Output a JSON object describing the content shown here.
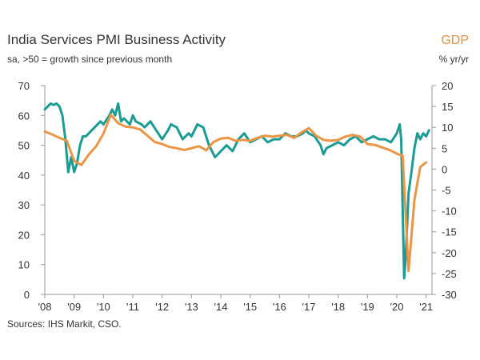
{
  "header": {
    "title": "India Services PMI Business Activity",
    "subtitle": "sa, >50 = growth since previous month",
    "right_series_label": "GDP",
    "right_axis_unit": "% yr/yr"
  },
  "footer": {
    "source": "Sources: IHS Markit, CSO."
  },
  "colors": {
    "pmi": "#1a9c95",
    "gdp": "#ec9545",
    "axis": "#9a9a9a",
    "text": "#333333"
  },
  "chart_data": {
    "type": "line",
    "title": "India Services PMI Business Activity",
    "subtitle": "sa, >50 = growth since previous month",
    "xlabel": "",
    "ylabel": "",
    "y2label": "% yr/yr",
    "xlim": [
      2008.0,
      2021.2
    ],
    "ylim": [
      0,
      70
    ],
    "y2lim": [
      -30,
      20
    ],
    "grid": false,
    "x_tick_labels": [
      "'08",
      "'09",
      "'10",
      "'11",
      "'12",
      "'13",
      "'14",
      "'15",
      "'16",
      "'17",
      "'18",
      "'19",
      "'20",
      "'21"
    ],
    "y_tick_labels": [
      "0",
      "10",
      "20",
      "30",
      "40",
      "50",
      "60",
      "70"
    ],
    "y2_tick_labels": [
      "-30",
      "-25",
      "-20",
      "-15",
      "-10",
      "-5",
      "0",
      "5",
      "10",
      "15",
      "20"
    ],
    "series": [
      {
        "axis": "left",
        "x": [
          2008.0,
          2008.1,
          2008.2,
          2008.3,
          2008.4,
          2008.5,
          2008.6,
          2008.7,
          2008.8,
          2008.9,
          2009.0,
          2009.1,
          2009.2,
          2009.3,
          2009.4,
          2009.5,
          2009.7,
          2009.9,
          2010.0,
          2010.2,
          2010.3,
          2010.4,
          2010.5,
          2010.6,
          2010.7,
          2010.9,
          2011.0,
          2011.1,
          2011.3,
          2011.4,
          2011.6,
          2011.8,
          2012.0,
          2012.2,
          2012.3,
          2012.5,
          2012.7,
          2012.9,
          2013.0,
          2013.2,
          2013.4,
          2013.6,
          2013.7,
          2013.8,
          2014.0,
          2014.2,
          2014.4,
          2014.6,
          2014.8,
          2015.0,
          2015.2,
          2015.4,
          2015.6,
          2015.8,
          2016.0,
          2016.2,
          2016.4,
          2016.6,
          2016.8,
          2016.9,
          2017.0,
          2017.2,
          2017.4,
          2017.5,
          2017.6,
          2017.8,
          2018.0,
          2018.2,
          2018.4,
          2018.6,
          2018.8,
          2019.0,
          2019.2,
          2019.4,
          2019.6,
          2019.8,
          2020.0,
          2020.1,
          2020.15,
          2020.25,
          2020.3,
          2020.4,
          2020.5,
          2020.6,
          2020.7,
          2020.8,
          2020.9,
          2021.0,
          2021.1
        ],
        "values": [
          62,
          63,
          64,
          63.5,
          64,
          63,
          60,
          52,
          41,
          46,
          41,
          44,
          50,
          53,
          53,
          54,
          56,
          58,
          57,
          60,
          62,
          60,
          64,
          58,
          59,
          57,
          60,
          58,
          57,
          56,
          58,
          55,
          52,
          55,
          57,
          56,
          52,
          54,
          53,
          57,
          56,
          50,
          48,
          46,
          48,
          50,
          48,
          52,
          54,
          51,
          52,
          53,
          51,
          52,
          52,
          54,
          53,
          53,
          54,
          55,
          54,
          53,
          50,
          47,
          49,
          50,
          51,
          50,
          52,
          53,
          51,
          52,
          53,
          52,
          52,
          51,
          54,
          57,
          52,
          5.4,
          12,
          34,
          41,
          49,
          54,
          52,
          54,
          53,
          55
        ]
      },
      {
        "axis": "right",
        "x": [
          2008.0,
          2008.25,
          2008.5,
          2008.75,
          2009.0,
          2009.25,
          2009.5,
          2009.75,
          2010.0,
          2010.25,
          2010.5,
          2010.75,
          2011.0,
          2011.25,
          2011.5,
          2011.75,
          2012.0,
          2012.25,
          2012.5,
          2012.75,
          2013.0,
          2013.25,
          2013.5,
          2013.75,
          2014.0,
          2014.25,
          2014.5,
          2014.75,
          2015.0,
          2015.25,
          2015.5,
          2015.75,
          2016.0,
          2016.25,
          2016.5,
          2016.75,
          2017.0,
          2017.25,
          2017.5,
          2017.75,
          2018.0,
          2018.25,
          2018.5,
          2018.75,
          2019.0,
          2019.25,
          2019.5,
          2019.75,
          2020.0,
          2020.2,
          2020.4,
          2020.6,
          2020.8,
          2021.0
        ],
        "values": [
          9.0,
          8.3,
          7.5,
          6.8,
          2.0,
          1.0,
          3.5,
          5.5,
          8.5,
          13.0,
          11.0,
          10.2,
          10.0,
          9.5,
          8.0,
          6.5,
          6.0,
          5.3,
          5.0,
          4.6,
          5.0,
          5.5,
          4.5,
          6.5,
          7.3,
          7.5,
          6.8,
          7.0,
          6.8,
          7.5,
          8.0,
          7.8,
          8.0,
          8.2,
          7.5,
          8.8,
          9.8,
          8.0,
          7.0,
          6.8,
          7.0,
          7.8,
          8.2,
          7.8,
          6.0,
          5.8,
          5.2,
          4.6,
          3.7,
          3.2,
          -24.4,
          -7.4,
          0.5,
          1.6
        ]
      }
    ]
  }
}
